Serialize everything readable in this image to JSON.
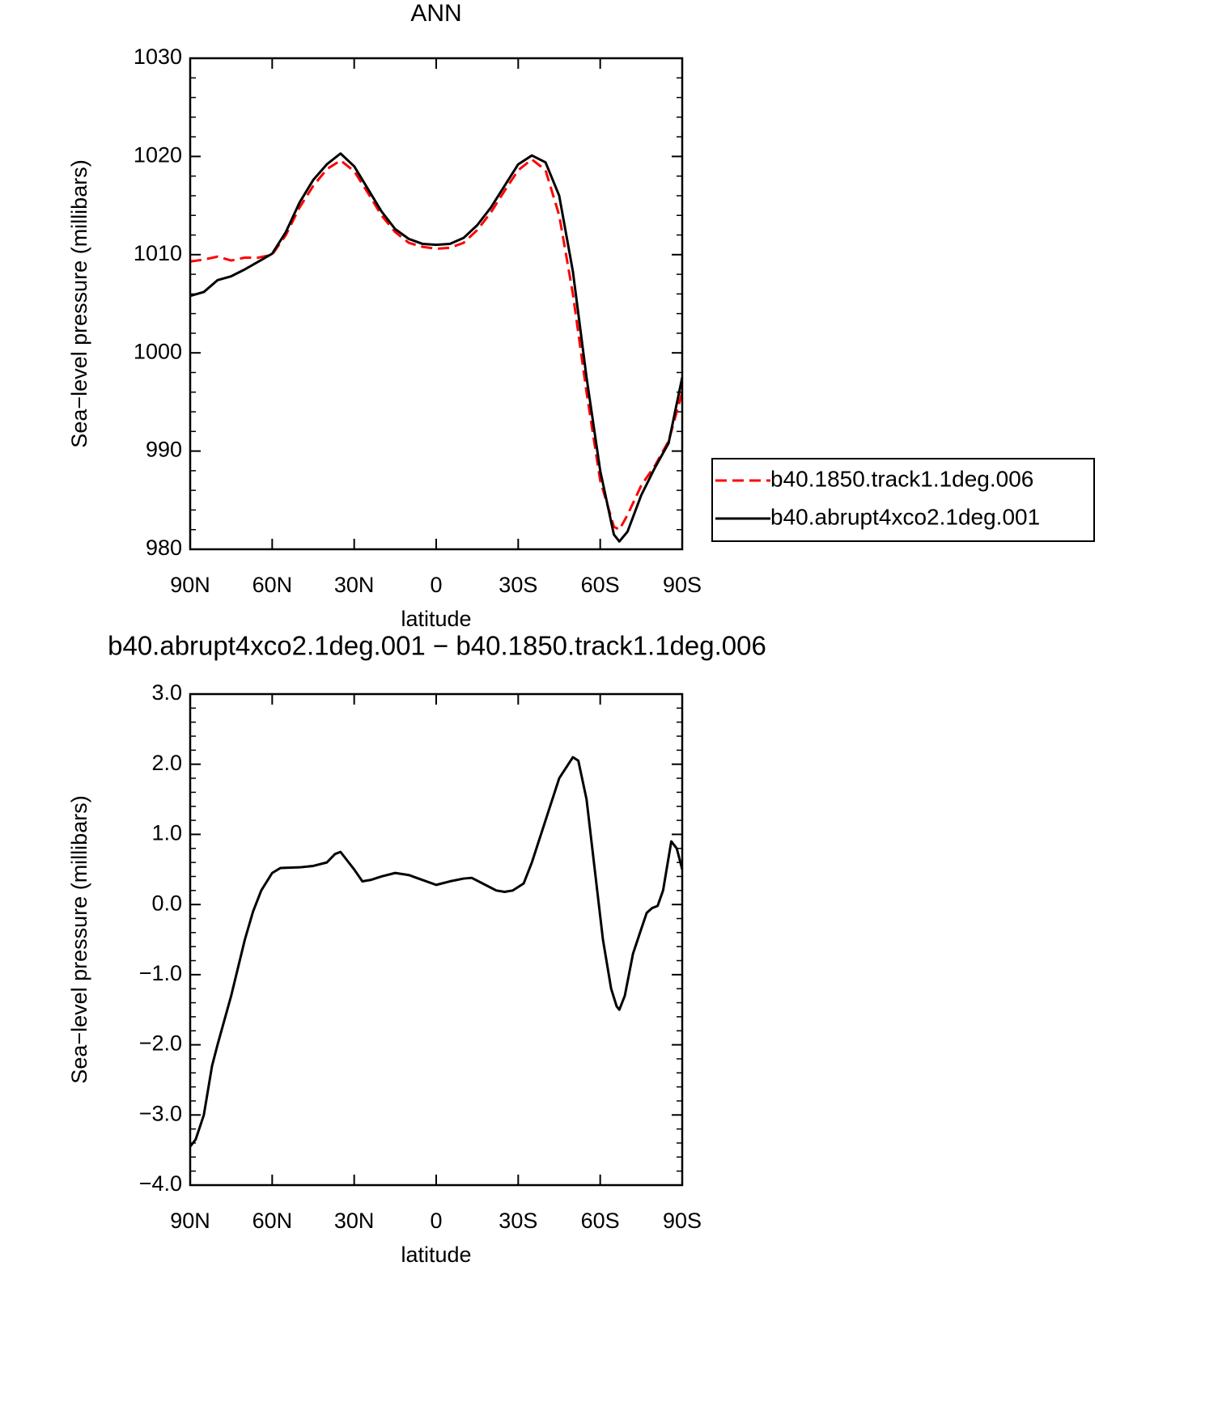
{
  "chart_data": [
    {
      "type": "line",
      "title": "ANN",
      "xlabel": "latitude",
      "ylabel": "Sea−level pressure (millibars)",
      "x": [
        90,
        85,
        80,
        75,
        70,
        65,
        60,
        55,
        50,
        45,
        40,
        35,
        30,
        25,
        20,
        15,
        10,
        5,
        0,
        -5,
        -10,
        -15,
        -20,
        -25,
        -30,
        -35,
        -40,
        -45,
        -50,
        -55,
        -60,
        -65,
        -67,
        -70,
        -75,
        -80,
        -85,
        -90
      ],
      "series": [
        {
          "name": "b40.1850.track1.1deg.006",
          "color": "#ff0000",
          "dashed": true,
          "values": [
            1009.3,
            1009.5,
            1009.8,
            1009.4,
            1009.7,
            1009.7,
            1010.0,
            1012,
            1014.8,
            1017,
            1018.7,
            1019.6,
            1018.5,
            1016.3,
            1014,
            1012.3,
            1011.2,
            1010.8,
            1010.6,
            1010.7,
            1011.2,
            1012.5,
            1014.3,
            1016.5,
            1018.6,
            1019.7,
            1018.6,
            1014,
            1006,
            996,
            987,
            982.3,
            982,
            983.5,
            986.5,
            988.5,
            991,
            996
          ]
        },
        {
          "name": "b40.abrupt4xco2.1deg.001",
          "color": "#000000",
          "dashed": false,
          "values": [
            1005.8,
            1006.2,
            1007.4,
            1007.8,
            1008.5,
            1009.3,
            1010.1,
            1012.3,
            1015.3,
            1017.6,
            1019.2,
            1020.3,
            1019,
            1016.7,
            1014.4,
            1012.6,
            1011.6,
            1011.1,
            1011,
            1011.1,
            1011.7,
            1013,
            1014.8,
            1017,
            1019.2,
            1020.1,
            1019.4,
            1016,
            1008.3,
            997.5,
            988,
            981.5,
            980.8,
            981.8,
            985.5,
            988.3,
            990.8,
            997.5
          ]
        }
      ],
      "xlim": [
        90,
        -90
      ],
      "xticks": [
        {
          "value": 90,
          "label": "90N"
        },
        {
          "value": 60,
          "label": "60N"
        },
        {
          "value": 30,
          "label": "30N"
        },
        0,
        {
          "value": -30,
          "label": "30S"
        },
        {
          "value": -60,
          "label": "60S"
        },
        {
          "value": -90,
          "label": "90S"
        }
      ],
      "ylim": [
        980,
        1030
      ],
      "yticks": [
        980,
        990,
        1000,
        1010,
        1020,
        1030
      ],
      "legend": "right"
    },
    {
      "type": "line",
      "title": "b40.abrupt4xco2.1deg.001 − b40.1850.track1.1deg.006",
      "xlabel": "latitude",
      "ylabel": "Sea−level pressure (millibars)",
      "x": [
        90,
        88,
        85,
        82,
        80,
        75,
        70,
        67,
        64,
        60,
        57,
        50,
        45,
        40,
        37,
        35,
        32,
        30,
        27,
        24,
        20,
        15,
        10,
        5,
        0,
        -5,
        -10,
        -13,
        -18,
        -22,
        -25,
        -28,
        -32,
        -35,
        -40,
        -45,
        -50,
        -52,
        -55,
        -58,
        -61,
        -64,
        -66,
        -67,
        -69,
        -72,
        -75,
        -77,
        -79,
        -81,
        -83,
        -86,
        -88,
        -90
      ],
      "series": [
        {
          "color": "#000000",
          "dashed": false,
          "values": [
            -3.45,
            -3.35,
            -3.0,
            -2.3,
            -2.0,
            -1.3,
            -0.5,
            -0.1,
            0.2,
            0.45,
            0.52,
            0.53,
            0.55,
            0.6,
            0.72,
            0.75,
            0.6,
            0.5,
            0.33,
            0.35,
            0.4,
            0.45,
            0.42,
            0.35,
            0.28,
            0.33,
            0.37,
            0.38,
            0.28,
            0.2,
            0.18,
            0.2,
            0.3,
            0.6,
            1.2,
            1.8,
            2.1,
            2.05,
            1.5,
            0.5,
            -0.5,
            -1.2,
            -1.45,
            -1.5,
            -1.3,
            -0.7,
            -0.35,
            -0.12,
            -0.05,
            -0.02,
            0.2,
            0.9,
            0.8,
            0.5
          ]
        }
      ],
      "xlim": [
        90,
        -90
      ],
      "xticks": [
        {
          "value": 90,
          "label": "90N"
        },
        {
          "value": 60,
          "label": "60N"
        },
        {
          "value": 30,
          "label": "30N"
        },
        0,
        {
          "value": -30,
          "label": "30S"
        },
        {
          "value": -60,
          "label": "60S"
        },
        {
          "value": -90,
          "label": "90S"
        }
      ],
      "ylim": [
        -4,
        3
      ],
      "yticks": [
        {
          "value": -4,
          "label": "−4.0"
        },
        {
          "value": -3,
          "label": "−3.0"
        },
        {
          "value": -2,
          "label": "−2.0"
        },
        {
          "value": -1,
          "label": "−1.0"
        },
        {
          "value": 0,
          "label": "0.0"
        },
        {
          "value": 1,
          "label": "1.0"
        },
        {
          "value": 2,
          "label": "2.0"
        },
        {
          "value": 3,
          "label": "3.0"
        }
      ]
    }
  ]
}
